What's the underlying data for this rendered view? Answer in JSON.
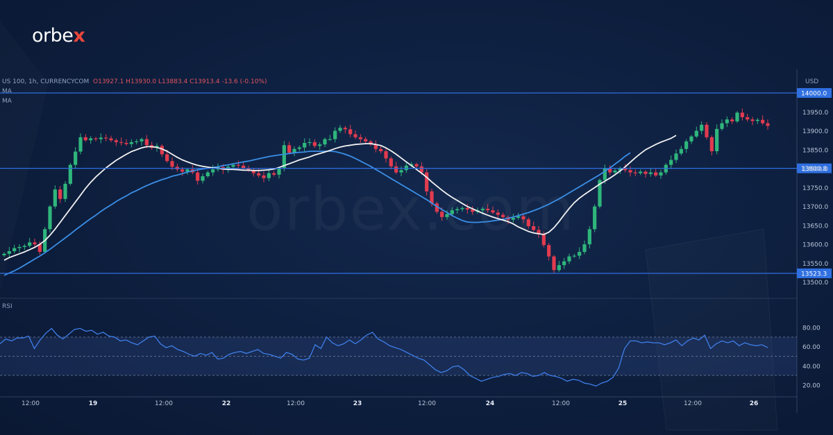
{
  "brand": {
    "logo_prefix": "orbe",
    "logo_x": "x",
    "watermark": "orbex.com"
  },
  "header": {
    "instrument": "US 100, 1h, CURRENCYCOM",
    "ohlc": "O13927.1  H13930.0  L13883.4  C13913.4  -13.6 (-0.10%)",
    "ma1": "MA",
    "ma2": "MA",
    "rsi_label": "RSI",
    "currency": "USD"
  },
  "colors": {
    "up": "#2fb67c",
    "down": "#e23b4f",
    "ma_fast": "#f2f2f2",
    "ma_slow": "#3b8fe6",
    "rsi": "#3f7ee8",
    "level": "#2f6fe0"
  },
  "chart_data": [
    {
      "type": "candlestick",
      "title": "US 100, 1h, CURRENCYCOM",
      "ylabel": "USD",
      "ylim": [
        13480,
        14040
      ],
      "y_ticks": [
        13500,
        13550,
        13600,
        13650,
        13700,
        13750,
        13800,
        13850,
        13900,
        13950,
        14000
      ],
      "x_ticks": [
        "12:00",
        "19",
        "12:00",
        "22",
        "12:00",
        "23",
        "12:00",
        "24",
        "12:00",
        "25",
        "12:00",
        "26"
      ],
      "levels": [
        14000.0,
        13800.8,
        13523.3
      ],
      "level_labels": [
        "14000.0",
        "13800.8",
        "13523.3"
      ],
      "close": [
        13575,
        13582,
        13590,
        13593,
        13596,
        13605,
        13600,
        13580,
        13640,
        13700,
        13745,
        13720,
        13760,
        13810,
        13845,
        13883,
        13875,
        13880,
        13878,
        13882,
        13880,
        13875,
        13870,
        13868,
        13865,
        13870,
        13872,
        13878,
        13862,
        13855,
        13860,
        13838,
        13820,
        13805,
        13798,
        13792,
        13798,
        13790,
        13768,
        13780,
        13790,
        13798,
        13804,
        13797,
        13805,
        13810,
        13808,
        13801,
        13796,
        13788,
        13782,
        13775,
        13788,
        13784,
        13800,
        13862,
        13842,
        13852,
        13856,
        13868,
        13870,
        13860,
        13864,
        13878,
        13878,
        13900,
        13908,
        13904,
        13891,
        13883,
        13878,
        13872,
        13864,
        13852,
        13846,
        13827,
        13806,
        13790,
        13796,
        13808,
        13812,
        13806,
        13790,
        13740,
        13708,
        13686,
        13672,
        13680,
        13690,
        13693,
        13696,
        13692,
        13686,
        13690,
        13694,
        13690,
        13684,
        13678,
        13672,
        13665,
        13670,
        13674,
        13666,
        13648,
        13638,
        13626,
        13598,
        13568,
        13532,
        13545,
        13555,
        13568,
        13570,
        13580,
        13600,
        13640,
        13700,
        13770,
        13800,
        13790,
        13795,
        13800,
        13796,
        13790,
        13788,
        13792,
        13786,
        13790,
        13782,
        13790,
        13810,
        13823,
        13840,
        13852,
        13872,
        13885,
        13900,
        13916,
        13883,
        13846,
        13905,
        13920,
        13930,
        13925,
        13948,
        13936,
        13930,
        13926,
        13929,
        13920,
        13913
      ],
      "sma_fast": [
        13558,
        13565,
        13570,
        13575,
        13580,
        13586,
        13592,
        13600,
        13610,
        13624,
        13640,
        13658,
        13676,
        13694,
        13712,
        13730,
        13748,
        13764,
        13778,
        13790,
        13802,
        13812,
        13822,
        13830,
        13838,
        13845,
        13850,
        13855,
        13858,
        13858,
        13856,
        13852,
        13846,
        13838,
        13830,
        13823,
        13818,
        13813,
        13809,
        13806,
        13804,
        13802,
        13801,
        13799,
        13798,
        13798,
        13797,
        13796,
        13796,
        13795,
        13795,
        13796,
        13797,
        13799,
        13803,
        13808,
        13813,
        13818,
        13823,
        13827,
        13831,
        13836,
        13840,
        13844,
        13848,
        13853,
        13857,
        13860,
        13862,
        13864,
        13865,
        13866,
        13866,
        13864,
        13861,
        13855,
        13847,
        13838,
        13828,
        13818,
        13808,
        13798,
        13788,
        13777,
        13765,
        13754,
        13743,
        13733,
        13724,
        13716,
        13708,
        13700,
        13694,
        13688,
        13682,
        13677,
        13672,
        13668,
        13664,
        13660,
        13654,
        13646,
        13640,
        13634,
        13630,
        13628,
        13626,
        13632,
        13644,
        13660,
        13678,
        13695,
        13710,
        13722,
        13732,
        13741,
        13750,
        13759,
        13767,
        13775,
        13784,
        13794,
        13805,
        13817,
        13829,
        13840,
        13850,
        13857,
        13864,
        13870,
        13875,
        13880,
        13888
      ],
      "sma_slow": [
        13518,
        13524,
        13530,
        13537,
        13545,
        13553,
        13561,
        13569,
        13578,
        13587,
        13597,
        13607,
        13617,
        13627,
        13638,
        13648,
        13658,
        13668,
        13677,
        13687,
        13696,
        13704,
        13713,
        13721,
        13728,
        13736,
        13742,
        13749,
        13755,
        13761,
        13766,
        13771,
        13775,
        13780,
        13783,
        13787,
        13791,
        13794,
        13797,
        13799,
        13801,
        13803,
        13805,
        13808,
        13810,
        13813,
        13815,
        13818,
        13820,
        13823,
        13826,
        13829,
        13832,
        13834,
        13836,
        13838,
        13840,
        13842,
        13843,
        13844,
        13846,
        13846,
        13846,
        13846,
        13846,
        13845,
        13842,
        13838,
        13833,
        13827,
        13820,
        13813,
        13806,
        13798,
        13790,
        13782,
        13774,
        13766,
        13758,
        13750,
        13742,
        13734,
        13726,
        13718,
        13709,
        13700,
        13692,
        13684,
        13676,
        13669,
        13663,
        13659,
        13658,
        13658,
        13659,
        13660,
        13662,
        13664,
        13666,
        13669,
        13672,
        13676,
        13680,
        13684,
        13689,
        13694,
        13700,
        13706,
        13713,
        13720,
        13728,
        13736,
        13744,
        13752,
        13760,
        13768,
        13776,
        13784,
        13793,
        13802,
        13812,
        13822,
        13833,
        13842
      ]
    },
    {
      "type": "line",
      "title": "RSI",
      "ylim": [
        10,
        90
      ],
      "y_ticks": [
        20,
        40,
        60,
        80
      ],
      "bands": [
        70,
        50,
        30
      ],
      "series": [
        {
          "name": "RSI",
          "values": [
            63,
            68,
            66,
            69,
            69,
            71,
            58,
            67,
            74,
            79,
            72,
            68,
            73,
            78,
            79,
            76,
            77,
            73,
            75,
            71,
            70,
            66,
            67,
            64,
            62,
            66,
            70,
            71,
            63,
            59,
            61,
            57,
            55,
            52,
            50,
            53,
            51,
            54,
            47,
            48,
            52,
            54,
            55,
            53,
            55,
            57,
            53,
            52,
            50,
            48,
            54,
            52,
            47,
            46,
            48,
            62,
            58,
            70,
            64,
            61,
            63,
            67,
            63,
            67,
            72,
            75,
            68,
            65,
            61,
            59,
            57,
            54,
            51,
            48,
            46,
            41,
            36,
            33,
            35,
            39,
            40,
            36,
            30,
            27,
            24,
            26,
            28,
            29,
            31,
            32,
            30,
            33,
            32,
            29,
            30,
            33,
            30,
            29,
            27,
            24,
            26,
            25,
            22,
            21,
            19,
            22,
            24,
            28,
            38,
            58,
            66,
            66,
            64,
            65,
            64,
            64,
            62,
            64,
            67,
            61,
            66,
            69,
            67,
            72,
            58,
            63,
            66,
            64,
            66,
            61,
            64,
            62,
            61,
            62,
            59
          ]
        }
      ]
    }
  ]
}
